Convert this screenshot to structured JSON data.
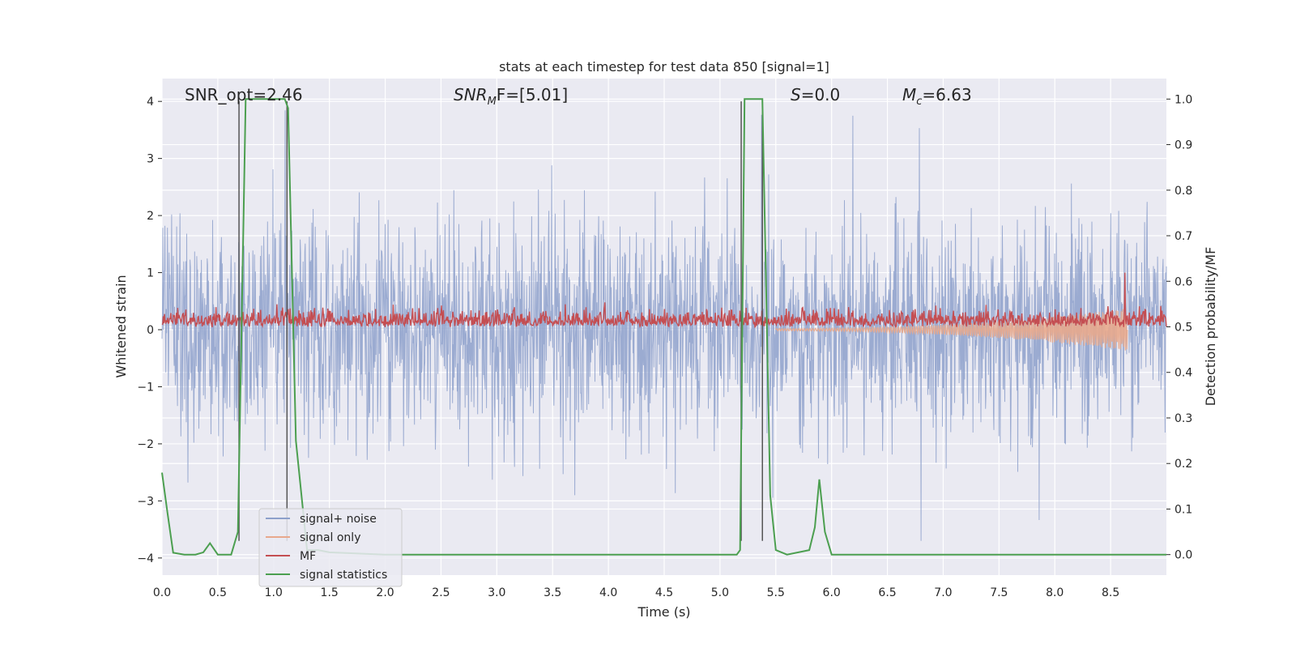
{
  "chart_data": {
    "type": "line",
    "title": "stats at each timestep for test data 850 [signal=1]",
    "xlabel": "Time (s)",
    "ylabel": "Whitened strain",
    "y2label": "Detection probability/MF",
    "xlim": [
      0.0,
      9.0
    ],
    "ylim": [
      -4.3,
      4.4
    ],
    "y2lim": [
      -0.045,
      1.045
    ],
    "xticks": [
      "0.0",
      "0.5",
      "1.0",
      "1.5",
      "2.0",
      "2.5",
      "3.0",
      "3.5",
      "4.0",
      "4.5",
      "5.0",
      "5.5",
      "6.0",
      "6.5",
      "7.0",
      "7.5",
      "8.0",
      "8.5"
    ],
    "yticks": [
      "4",
      "3",
      "2",
      "1",
      "0",
      "−1",
      "−2",
      "−3",
      "−4"
    ],
    "y2ticks": [
      "1.0",
      "0.9",
      "0.8",
      "0.7",
      "0.6",
      "0.5",
      "0.4",
      "0.3",
      "0.2",
      "0.1",
      "0.0"
    ],
    "grid": true,
    "legend_position": "lower-left",
    "annotations": [
      {
        "id": "snr-opt",
        "plain": "SNR_opt=2.46"
      },
      {
        "id": "snr-mf",
        "main": "SNR",
        "sub": "M",
        "rest": "F=[5.01]"
      },
      {
        "id": "s",
        "main": "S",
        "rest": "=0.0"
      },
      {
        "id": "mc",
        "main": "M",
        "sub": "c",
        "rest": "=6.63"
      }
    ],
    "series": [
      {
        "name": "signal+ noise",
        "color": "#8da0cb",
        "axis": "left",
        "kind": "noise",
        "amplitude_envelope": [
          -3.7,
          4.0
        ]
      },
      {
        "name": "signal only",
        "color": "#e8a88c",
        "axis": "left",
        "kind": "chirp",
        "start": 5.5,
        "end": 8.65,
        "peak_amplitude": 0.35
      },
      {
        "name": "MF",
        "color": "#c44e52",
        "axis": "left",
        "kind": "mf",
        "range": [
          0.0,
          0.8
        ],
        "peak": {
          "x": 8.63,
          "y": 1.0
        }
      },
      {
        "name": "signal statistics",
        "color": "#4c9f50",
        "axis": "right",
        "x": [
          0.0,
          0.05,
          0.1,
          0.2,
          0.3,
          0.37,
          0.43,
          0.5,
          0.55,
          0.62,
          0.68,
          0.75,
          0.8,
          1.0,
          1.1,
          1.13,
          1.2,
          1.3,
          1.4,
          1.5,
          2.0,
          3.0,
          4.0,
          5.0,
          5.15,
          5.18,
          5.22,
          5.28,
          5.35,
          5.38,
          5.45,
          5.5,
          5.6,
          5.8,
          5.85,
          5.89,
          5.94,
          6.0,
          7.0,
          8.0,
          9.0
        ],
        "y": [
          0.18,
          0.09,
          0.004,
          0.0,
          0.0,
          0.005,
          0.025,
          0.0,
          0.0,
          0.0,
          0.05,
          1.0,
          1.0,
          1.0,
          1.0,
          0.98,
          0.25,
          0.01,
          0.01,
          0.005,
          0.0,
          0.0,
          0.0,
          0.0,
          0.0,
          0.01,
          1.0,
          1.0,
          1.0,
          1.0,
          0.13,
          0.01,
          0.0,
          0.01,
          0.06,
          0.165,
          0.05,
          0.0,
          0.0,
          0.0,
          0.0
        ]
      }
    ],
    "vertical_lines": [
      0.69,
      1.12,
      5.19,
      5.38
    ]
  }
}
